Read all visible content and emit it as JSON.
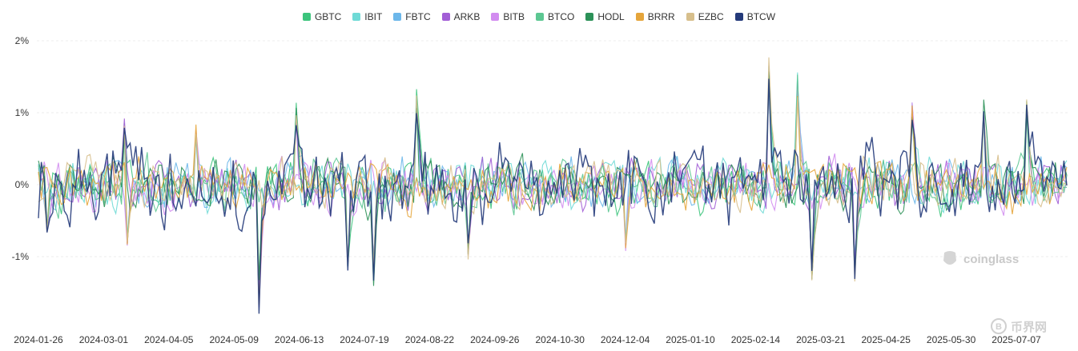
{
  "chart_data": {
    "type": "line",
    "yticks": [
      "2%",
      "1%",
      "0%",
      "-1%"
    ],
    "ylim": [
      -2,
      2
    ],
    "xticks": [
      "2024-01-26",
      "2024-03-01",
      "2024-04-05",
      "2024-05-09",
      "2024-06-13",
      "2024-07-19",
      "2024-08-22",
      "2024-09-26",
      "2024-10-30",
      "2024-12-04",
      "2025-01-10",
      "2025-02-14",
      "2025-03-21",
      "2025-04-25",
      "2025-05-30",
      "2025-07-07"
    ],
    "grid": true,
    "legend_position": "top-center",
    "series": [
      {
        "name": "GBTC",
        "color": "#3cc47c"
      },
      {
        "name": "IBIT",
        "color": "#6fdad6"
      },
      {
        "name": "FBTC",
        "color": "#6cb7ea"
      },
      {
        "name": "ARKB",
        "color": "#a25ed6"
      },
      {
        "name": "BITB",
        "color": "#d28cf0"
      },
      {
        "name": "BTCO",
        "color": "#5cc792"
      },
      {
        "name": "HODL",
        "color": "#2c9158"
      },
      {
        "name": "BRRR",
        "color": "#e5a53b"
      },
      {
        "name": "EZBC",
        "color": "#d7bf8c"
      },
      {
        "name": "BTCW",
        "color": "#243a7a"
      }
    ]
  },
  "watermark": {
    "brand": "coinglass",
    "brand2": "币界网"
  }
}
